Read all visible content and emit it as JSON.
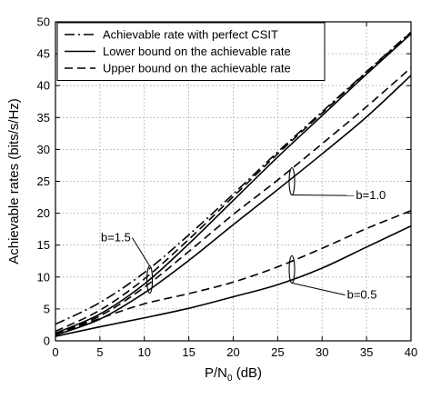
{
  "chart_data": {
    "type": "line",
    "title": "",
    "xlabel": "P/N",
    "xlabel_sub": "0",
    "xlabel_unit": " (dB)",
    "ylabel": "Achievable rates (bits/s/Hz)",
    "xlim": [
      0,
      40
    ],
    "ylim": [
      0,
      50
    ],
    "xticks": [
      0,
      5,
      10,
      15,
      20,
      25,
      30,
      35,
      40
    ],
    "yticks": [
      0,
      5,
      10,
      15,
      20,
      25,
      30,
      35,
      40,
      45,
      50
    ],
    "grid": true,
    "grid_style": "dotted",
    "legend_position": "top-left",
    "legend": [
      {
        "label": "Achievable rate with perfect CSIT",
        "dash": "dashdot"
      },
      {
        "label": "Lower bound on the achievable rate",
        "dash": "solid"
      },
      {
        "label": "Upper bound on the achievable rate",
        "dash": "dashed"
      }
    ],
    "series": [
      {
        "group": "perfect",
        "dash": "dashdot",
        "x": [
          0,
          5,
          10,
          15,
          20,
          25,
          30,
          35,
          40
        ],
        "y": [
          2.6,
          6.0,
          10.7,
          16.6,
          23.0,
          29.6,
          35.9,
          42.2,
          48.4
        ]
      },
      {
        "group": "b=1.5",
        "dash": "solid",
        "x": [
          0,
          5,
          10,
          15,
          20,
          25,
          30,
          35,
          40
        ],
        "y": [
          1.2,
          4.2,
          8.9,
          15.2,
          22.0,
          28.8,
          35.3,
          41.8,
          48.1
        ]
      },
      {
        "group": "b=1.5",
        "dash": "dashed",
        "x": [
          0,
          5,
          10,
          15,
          20,
          25,
          30,
          35,
          40
        ],
        "y": [
          1.5,
          4.8,
          9.7,
          15.9,
          22.6,
          29.3,
          35.7,
          42.1,
          48.3
        ]
      },
      {
        "group": "b=1.0",
        "dash": "solid",
        "x": [
          0,
          5,
          10,
          15,
          20,
          25,
          30,
          35,
          40
        ],
        "y": [
          0.9,
          3.4,
          7.5,
          12.6,
          18.2,
          23.7,
          29.3,
          35.1,
          41.6
        ]
      },
      {
        "group": "b=1.0",
        "dash": "dashed",
        "x": [
          0,
          5,
          10,
          15,
          20,
          25,
          30,
          35,
          40
        ],
        "y": [
          1.1,
          3.9,
          8.4,
          14.0,
          19.8,
          25.2,
          30.9,
          36.7,
          42.8
        ]
      },
      {
        "group": "b=0.5",
        "dash": "solid",
        "x": [
          0,
          5,
          10,
          15,
          20,
          25,
          30,
          35,
          40
        ],
        "y": [
          0.7,
          2.2,
          3.6,
          5.1,
          6.9,
          8.8,
          11.4,
          14.7,
          18.0
        ]
      },
      {
        "group": "b=0.5",
        "dash": "dashed",
        "x": [
          0,
          5,
          10,
          15,
          20,
          25,
          30,
          35,
          40
        ],
        "y": [
          0.9,
          3.5,
          5.8,
          7.4,
          9.2,
          11.6,
          14.5,
          17.6,
          20.4
        ]
      }
    ],
    "annotations": [
      {
        "text": "b=1.5",
        "ellipse_x": 10.6,
        "ellipse_y": 9.6,
        "label_x": 7.0,
        "label_y": 15.6
      },
      {
        "text": "b=1.0",
        "ellipse_x": 26.6,
        "ellipse_y": 25.0,
        "label_x": 33.8,
        "label_y": 22.2
      },
      {
        "text": "b=0.5",
        "ellipse_x": 26.6,
        "ellipse_y": 11.2,
        "label_x": 32.8,
        "label_y": 6.6
      }
    ]
  }
}
